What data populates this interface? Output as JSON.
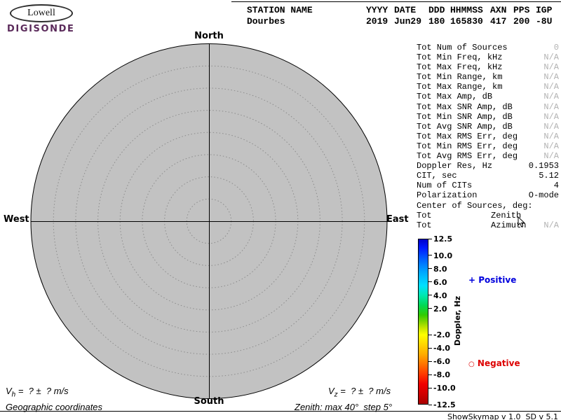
{
  "colors": {
    "plot_fill": "#c2c2c2",
    "ring_stroke": "#8c8c8c",
    "positive_accent": "#0000dd",
    "negative_accent": "#dd0000",
    "muted_value": "#b2b2b2",
    "logo_brand": "#5a2a5a"
  },
  "logo": {
    "line1": "Lowell",
    "line2": "DIGISONDE"
  },
  "header": {
    "columns": [
      {
        "label": "STATION NAME",
        "value": "Dourbes"
      },
      {
        "label": "YYYY",
        "value": "2019"
      },
      {
        "label": "DATE",
        "value": "Jun29"
      },
      {
        "label": "DDD",
        "value": "180"
      },
      {
        "label": "HHMMSS",
        "value": "165830"
      },
      {
        "label": "AXN",
        "value": "417"
      },
      {
        "label": "PPS",
        "value": "200"
      },
      {
        "label": "IGP",
        "value": "-8U"
      }
    ]
  },
  "compass": {
    "north": "North",
    "south": "South",
    "east": "East",
    "west": "West"
  },
  "stats": {
    "rows": [
      {
        "label": "Tot Num of Sources",
        "value": "0",
        "muted": true
      },
      {
        "label": "Tot Min Freq, kHz",
        "value": "N/A",
        "muted": true
      },
      {
        "label": "Tot Max Freq, kHz",
        "value": "N/A",
        "muted": true
      },
      {
        "label": "Tot Min Range, km",
        "value": "N/A",
        "muted": true
      },
      {
        "label": "Tot Max Range, km",
        "value": "N/A",
        "muted": true
      },
      {
        "label": "Tot Max Amp, dB",
        "value": "N/A",
        "muted": true
      },
      {
        "label": "Tot Max SNR Amp, dB",
        "value": "N/A",
        "muted": true
      },
      {
        "label": "Tot Min SNR Amp, dB",
        "value": "N/A",
        "muted": true
      },
      {
        "label": "Tot Avg SNR Amp, dB",
        "value": "N/A",
        "muted": true
      },
      {
        "label": "Tot Max RMS Err, deg",
        "value": "N/A",
        "muted": true
      },
      {
        "label": "Tot Min RMS Err, deg",
        "value": "N/A",
        "muted": true
      },
      {
        "label": "Tot Avg RMS Err, deg",
        "value": "N/A",
        "muted": true
      },
      {
        "label": "Doppler Res, Hz",
        "value": "0.1953",
        "muted": false
      },
      {
        "label": "CIT, sec",
        "value": "5.12",
        "muted": false
      },
      {
        "label": "Num of CITs",
        "value": "4",
        "muted": false
      },
      {
        "label": "Polarization",
        "value": "O-mode",
        "muted": false
      },
      {
        "label": "Center of Sources, deg:",
        "value": "",
        "muted": false
      },
      {
        "label": "Tot",
        "mid": "Zenith",
        "value": "",
        "muted": true
      },
      {
        "label": "Tot",
        "mid": "Azimuth",
        "value": "N/A",
        "muted": true
      }
    ]
  },
  "colorbar": {
    "ticks": [
      "12.5",
      "10.0",
      "8.0",
      "6.0",
      "4.0",
      "2.0",
      "-2.0",
      "-4.0",
      "-6.0",
      "-8.0",
      "-10.0",
      "-12.5"
    ],
    "axis_label": "Doppler, Hz",
    "positive_marker": "+",
    "positive_label": "Positive",
    "negative_marker": "○",
    "negative_label": "Negative"
  },
  "footer": {
    "v_h": {
      "symbol": "V",
      "subscript": "h",
      "value_text": " =  ? ±  ? m/s"
    },
    "v_z": {
      "symbol": "V",
      "subscript": "z",
      "value_text": " =  ? ±  ? m/s"
    },
    "coordinates_label": "Geographic coordinates",
    "zenith_info": "Zenith: max 40°  step 5°",
    "version": "ShowSkymap v 1.0  SD v 5.1"
  },
  "chart_data": {
    "type": "scatter",
    "title": "Digisonde skymap (polar source plot), 0 sources detected",
    "points": [],
    "num_sources": 0,
    "zenith_max_deg": 40,
    "zenith_step_deg": 5,
    "compass_labels": [
      "North",
      "East",
      "South",
      "West"
    ],
    "color_scale": {
      "label": "Doppler, Hz",
      "min": -12.5,
      "max": 12.5,
      "ticks": [
        12.5,
        10.0,
        8.0,
        6.0,
        4.0,
        2.0,
        -2.0,
        -4.0,
        -6.0,
        -8.0,
        -10.0,
        -12.5
      ]
    }
  }
}
